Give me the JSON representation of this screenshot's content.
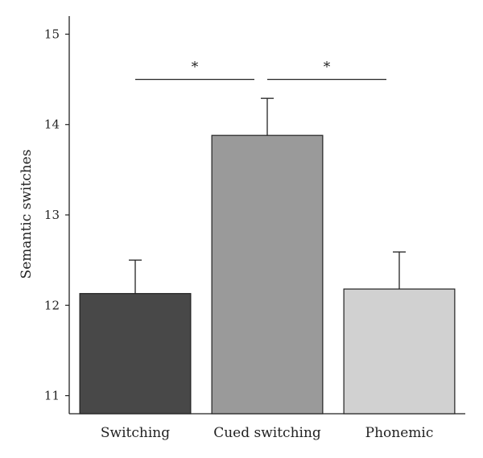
{
  "chart_data": {
    "type": "bar",
    "title": "",
    "xlabel": "",
    "ylabel": "Semantic switches",
    "ylim": [
      10.8,
      15.2
    ],
    "yticks": [
      11,
      12,
      13,
      14,
      15
    ],
    "categories": [
      "Switching",
      "Cued switching",
      "Phonemic"
    ],
    "values": [
      12.13,
      13.88,
      12.18
    ],
    "error_upper": [
      0.37,
      0.41,
      0.41
    ],
    "bar_colors": [
      "#484848",
      "#9a9a9a",
      "#d1d1d1"
    ],
    "grid": false,
    "significance": [
      {
        "from": 0,
        "to": 1,
        "label": "*",
        "y": 14.5
      },
      {
        "from": 1,
        "to": 2,
        "label": "*",
        "y": 14.5
      }
    ]
  }
}
